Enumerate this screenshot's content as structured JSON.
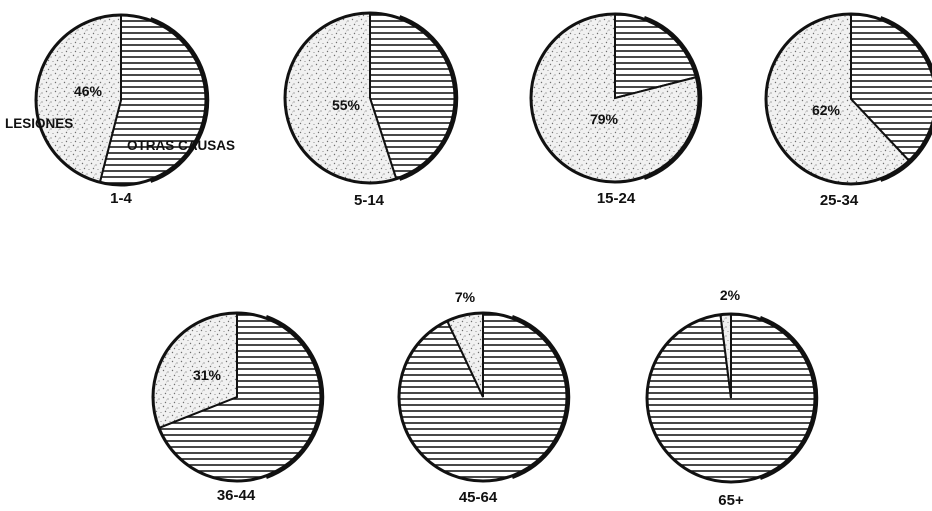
{
  "chart_data": {
    "type": "pie",
    "categories": [
      "LESIONES",
      "OTRAS CAUSAS"
    ],
    "series_labels": {
      "lesiones": "LESIONES",
      "otras": "OTRAS CAUSAS"
    },
    "pies": [
      {
        "group": "1-4",
        "lesiones": 46,
        "lesiones_label": "46%"
      },
      {
        "group": "5-14",
        "lesiones": 55,
        "lesiones_label": "55%"
      },
      {
        "group": "15-24",
        "lesiones": 79,
        "lesiones_label": "79%"
      },
      {
        "group": "25-34",
        "lesiones": 62,
        "lesiones_label": "62%"
      },
      {
        "group": "36-44",
        "lesiones": 31,
        "lesiones_label": "31%"
      },
      {
        "group": "45-64",
        "lesiones": 7,
        "lesiones_label": "7%"
      },
      {
        "group": "65+",
        "lesiones": 2,
        "lesiones_label": "2%"
      }
    ]
  },
  "colors": {
    "ink": "#111111",
    "stipple_bg": "#f1f1f1",
    "stipple_dot": "#6f6f6f",
    "hatch_line": "#1a1a1a"
  }
}
